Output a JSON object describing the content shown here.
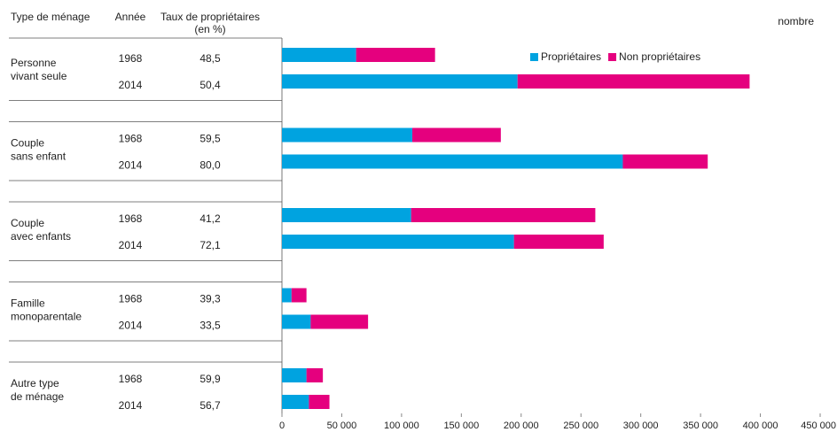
{
  "chart_data": {
    "type": "bar",
    "horizontal": true,
    "stacked": true,
    "headers": [
      "Type de ménage",
      "Année",
      "Taux de propriétaires",
      "(en %)"
    ],
    "axis_label": "nombre",
    "groups": [
      [
        "Personne",
        "vivant seule"
      ],
      [
        "Couple",
        "sans enfant"
      ],
      [
        "Couple",
        "avec enfants"
      ],
      [
        "Famille",
        "monoparentale"
      ],
      [
        "Autre type",
        "de ménage"
      ]
    ],
    "categories": [
      "1968",
      "2014",
      "1968",
      "2014",
      "1968",
      "2014",
      "1968",
      "2014",
      "1968",
      "2014"
    ],
    "rates": [
      "48,5",
      "50,4",
      "59,5",
      "80,0",
      "41,2",
      "72,1",
      "39,3",
      "33,5",
      "59,9",
      "56,7"
    ],
    "series": [
      {
        "name": "Propriétaires",
        "color": "#00a3e0",
        "values": [
          62000,
          197000,
          109000,
          285000,
          108000,
          194000,
          8000,
          24000,
          20500,
          22500
        ]
      },
      {
        "name": "Non propriétaires",
        "color": "#e5007e",
        "values": [
          66000,
          194000,
          74000,
          71000,
          154000,
          75000,
          12500,
          48000,
          13700,
          17200
        ]
      }
    ],
    "xlim": [
      0,
      450000
    ],
    "xticks": [
      0,
      {
        "value": 50000,
        "label": "50 000"
      },
      {
        "value": 100000,
        "label": "100 000"
      },
      {
        "value": 150000,
        "label": "150 000"
      },
      {
        "value": 200000,
        "label": "200 000"
      },
      {
        "value": 250000,
        "label": "250 000"
      },
      {
        "value": 300000,
        "label": "300 000"
      },
      {
        "value": 350000,
        "label": "350 000"
      },
      {
        "value": 400000,
        "label": "400 000"
      },
      {
        "value": 450000,
        "label": "450 000"
      }
    ],
    "legend": "top-right"
  }
}
